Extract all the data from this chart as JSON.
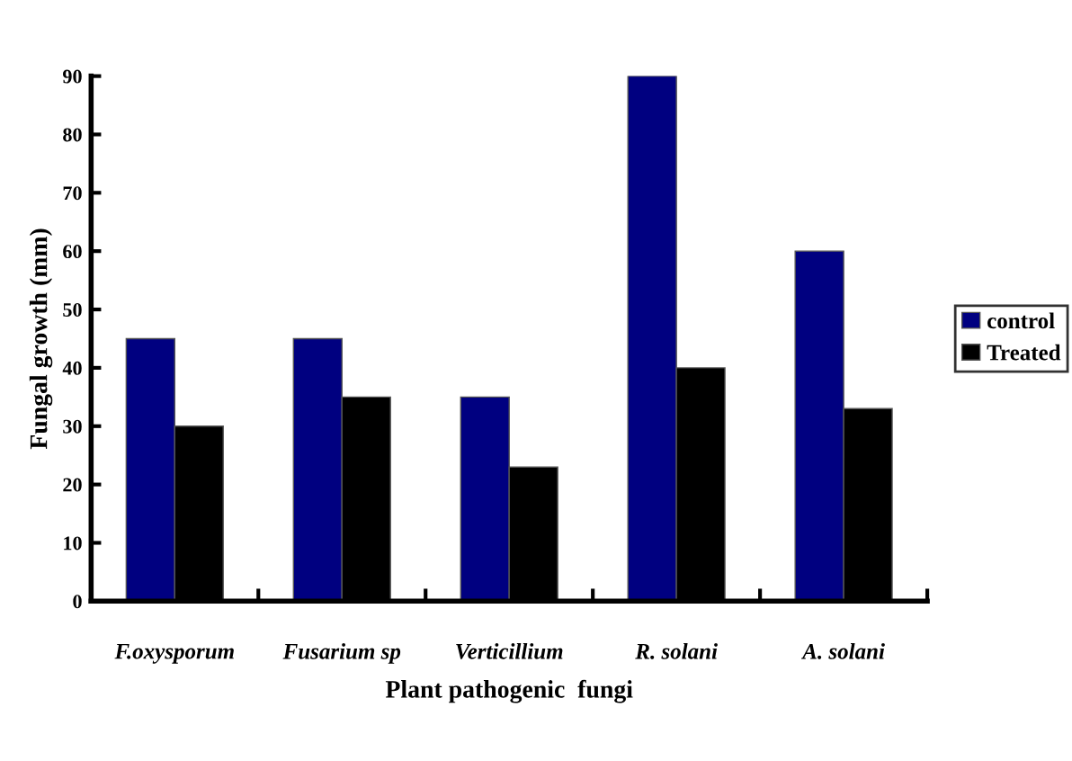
{
  "chart_data": {
    "type": "bar",
    "xlabel": "Plant pathogenic  fungi",
    "ylabel": "Fungal growth (mm)",
    "categories": [
      "F.oxysporum",
      "Fusarium sp",
      "Verticillium",
      "R. solani",
      "A. solani"
    ],
    "series": [
      {
        "name": "control",
        "color": "#000080",
        "values": [
          45,
          45,
          35,
          90,
          60
        ]
      },
      {
        "name": "Treated",
        "color": "#000000",
        "values": [
          30,
          35,
          23,
          40,
          33
        ]
      }
    ],
    "ylim": [
      0,
      90
    ],
    "yticks": [
      0,
      10,
      20,
      30,
      40,
      50,
      60,
      70,
      80,
      90
    ],
    "grid": false,
    "legend": "right"
  }
}
